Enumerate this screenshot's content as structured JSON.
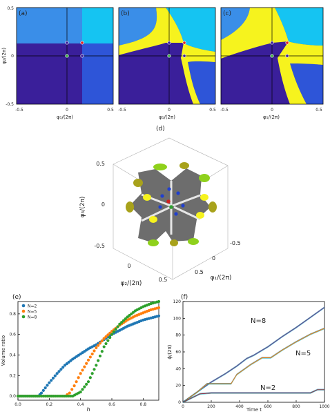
{
  "colors": {
    "navy": "#3a1f9a",
    "royal": "#2e55d8",
    "sky": "#3a8ee8",
    "cyan": "#15c4f2",
    "yellow": "#f6f31e",
    "gray": "#6d6d6d",
    "lime": "#8fd11c",
    "olive": "#a8a21b",
    "blue_s": "#1f77b4",
    "orange_s": "#ff7f0e",
    "green_s": "#2ca02c"
  },
  "chart_data": [
    {
      "panel": "(a)",
      "type": "heatmap",
      "xlabel": "φ₁/(2π)",
      "ylabel": "φ₂/(2π)",
      "xlim": [
        -0.5,
        0.5
      ],
      "ylim": [
        -0.5,
        0.5
      ],
      "xticks": [
        "-0.5",
        "0",
        "0.5"
      ],
      "yticks": [
        "0.5",
        "0",
        "-0.5"
      ],
      "regions": [
        "navy",
        "royal",
        "sky",
        "cyan"
      ],
      "markers": [
        {
          "x": 0,
          "y": 0.13,
          "color": "navy"
        },
        {
          "x": 0.17,
          "y": 0.13,
          "color": "red"
        },
        {
          "x": 0,
          "y": 0,
          "color": "green"
        },
        {
          "x": 0.17,
          "y": 0,
          "color": "navy"
        }
      ]
    },
    {
      "panel": "(b)",
      "type": "heatmap",
      "xlabel": "φ₁/(2π)",
      "xlim": [
        -0.5,
        0.5
      ],
      "ylim": [
        -0.5,
        0.5
      ],
      "xticks": [
        "-0.5",
        "0",
        "0.5"
      ],
      "regions": [
        "navy",
        "royal",
        "sky",
        "cyan",
        "yellow"
      ]
    },
    {
      "panel": "(c)",
      "type": "heatmap",
      "xlabel": "φ₁/(2π)",
      "xlim": [
        -0.5,
        0.5
      ],
      "ylim": [
        -0.5,
        0.5
      ],
      "xticks": [
        "-0.5",
        "0",
        "0.5"
      ],
      "regions": [
        "navy",
        "royal",
        "sky",
        "cyan",
        "yellow"
      ]
    },
    {
      "panel": "(d)",
      "type": "scatter",
      "xlabel": "φ₁/(2π)",
      "ylabel": "φ₂/(2π)",
      "zlabel": "φ₃/(2π)",
      "zticks": [
        "0.5",
        "0",
        "-0.5"
      ],
      "x1ticks": [
        "-0.5",
        "0",
        "0.5"
      ],
      "x2ticks": [
        "0",
        "0.5"
      ]
    },
    {
      "panel": "(e)",
      "type": "scatter",
      "xlabel": "h",
      "ylabel": "Volume ratio",
      "xlim": [
        0,
        0.9
      ],
      "ylim": [
        -0.04,
        0.92
      ],
      "xticks": [
        0.0,
        0.2,
        0.4,
        0.6,
        0.8
      ],
      "yticks": [
        0.0,
        0.2,
        0.4,
        0.6,
        0.8
      ],
      "tick_labels_x": [
        "0.0",
        "0.2",
        "0.4",
        "0.6",
        "0.8"
      ],
      "tick_labels_y": [
        "0.0",
        "0.2",
        "0.4",
        "0.6",
        "0.8"
      ],
      "legend_position": "top-left",
      "series": [
        {
          "name": "N=2",
          "color": "blue_s",
          "x": [
            0.0,
            0.13,
            0.15,
            0.2,
            0.25,
            0.3,
            0.35,
            0.4,
            0.45,
            0.5,
            0.55,
            0.6,
            0.65,
            0.7,
            0.75,
            0.8,
            0.85,
            0.9
          ],
          "y": [
            0.0,
            0.0,
            0.03,
            0.13,
            0.22,
            0.3,
            0.36,
            0.41,
            0.46,
            0.5,
            0.55,
            0.6,
            0.64,
            0.68,
            0.71,
            0.74,
            0.76,
            0.78
          ]
        },
        {
          "name": "N=5",
          "color": "orange_s",
          "x": [
            0.0,
            0.3,
            0.33,
            0.36,
            0.4,
            0.45,
            0.5,
            0.55,
            0.6,
            0.65,
            0.7,
            0.75,
            0.8,
            0.85,
            0.9
          ],
          "y": [
            0.0,
            0.0,
            0.03,
            0.1,
            0.22,
            0.35,
            0.47,
            0.56,
            0.63,
            0.69,
            0.74,
            0.78,
            0.81,
            0.84,
            0.86
          ]
        },
        {
          "name": "N=8",
          "color": "green_s",
          "x": [
            0.0,
            0.35,
            0.4,
            0.45,
            0.5,
            0.55,
            0.6,
            0.65,
            0.7,
            0.75,
            0.8,
            0.85,
            0.9
          ],
          "y": [
            0.0,
            0.0,
            0.04,
            0.14,
            0.3,
            0.48,
            0.6,
            0.7,
            0.77,
            0.83,
            0.87,
            0.9,
            0.92
          ]
        }
      ]
    },
    {
      "panel": "(f)",
      "type": "line",
      "xlabel": "Time t",
      "ylabel": "ϕ/(2π)",
      "xlim": [
        0,
        1000
      ],
      "ylim": [
        0,
        120
      ],
      "xticks": [
        0,
        200,
        400,
        600,
        800,
        1000
      ],
      "yticks": [
        0,
        20,
        40,
        60,
        80,
        100,
        120
      ],
      "tick_labels_x": [
        "0",
        "200",
        "400",
        "600",
        "800",
        "1000"
      ],
      "tick_labels_y": [
        "0",
        "20",
        "40",
        "60",
        "80",
        "100",
        "120"
      ],
      "annotations": [
        "N=8",
        "N=5",
        "N=2"
      ],
      "series": [
        {
          "name": "N=8",
          "color": "purple",
          "x": [
            0,
            100,
            200,
            300,
            380,
            450,
            500,
            600,
            700,
            800,
            900,
            1000
          ],
          "y": [
            0,
            12,
            24,
            34,
            43,
            52,
            56,
            66,
            78,
            89,
            101,
            113
          ]
        },
        {
          "name": "N=5",
          "color": "orange_s",
          "x": [
            0,
            100,
            170,
            250,
            340,
            380,
            480,
            560,
            620,
            700,
            800,
            900,
            1000
          ],
          "y": [
            0,
            12,
            22,
            22,
            22,
            33,
            45,
            53,
            53,
            62,
            72,
            81,
            88
          ]
        },
        {
          "name": "N=2",
          "color": "brown",
          "x": [
            0,
            120,
            200,
            400,
            600,
            800,
            900,
            950,
            1000
          ],
          "y": [
            0,
            10,
            11,
            11,
            11,
            11,
            11,
            15,
            15
          ]
        }
      ]
    }
  ],
  "labels": {
    "a": "(a)",
    "b": "(b)",
    "c": "(c)",
    "d": "(d)",
    "e": "(e)",
    "f": "(f)"
  }
}
